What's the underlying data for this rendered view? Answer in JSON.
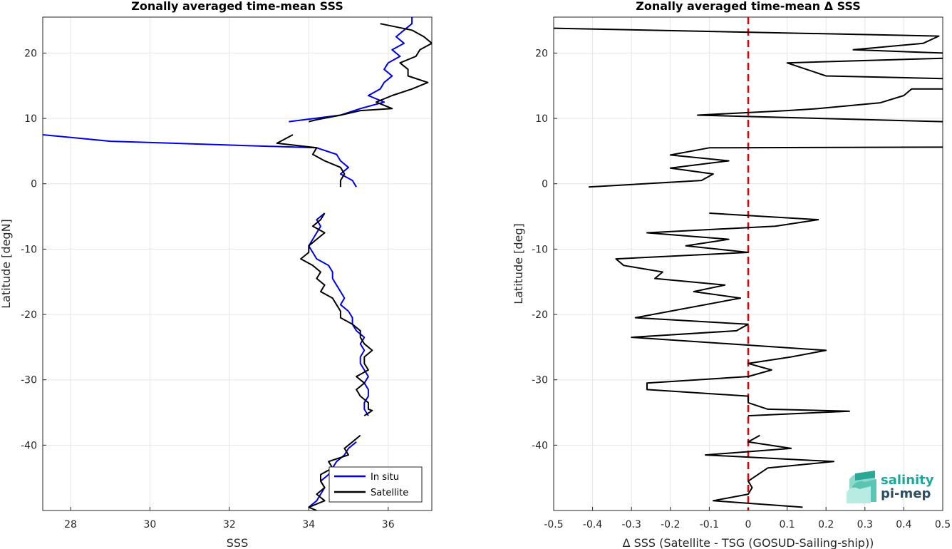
{
  "chart_data": [
    {
      "type": "line",
      "title": "Zonally averaged time-mean SSS",
      "xlabel": "SSS",
      "ylabel": "Latitude [degN]",
      "xlim": [
        27.3,
        37.1
      ],
      "ylim": [
        -50,
        25.5
      ],
      "xticks": [
        28,
        30,
        32,
        34,
        36
      ],
      "yticks": [
        20,
        10,
        0,
        -10,
        -20,
        -30,
        -40
      ],
      "grid": true,
      "legend": "bottom-right",
      "series": [
        {
          "name": "In situ",
          "color": "#0000e6",
          "segments": [
            [
              [
                36.6,
                25.5
              ],
              [
                36.6,
                24.5
              ],
              [
                36.4,
                23.5
              ],
              [
                36.2,
                22.5
              ],
              [
                36.4,
                21.5
              ],
              [
                36.1,
                20.5
              ],
              [
                36.3,
                19.5
              ],
              [
                36.0,
                18.5
              ],
              [
                35.9,
                17.5
              ],
              [
                36.1,
                16.5
              ],
              [
                35.9,
                15.5
              ],
              [
                35.8,
                14.5
              ],
              [
                35.5,
                13.5
              ],
              [
                35.9,
                12.5
              ],
              [
                35.3,
                11.5
              ],
              [
                34.8,
                10.5
              ],
              [
                33.5,
                9.5
              ]
            ],
            [
              [
                27.3,
                7.5
              ],
              [
                29.0,
                6.5
              ],
              [
                34.2,
                5.5
              ],
              [
                34.7,
                4.5
              ],
              [
                34.8,
                3.5
              ],
              [
                35.0,
                2.5
              ],
              [
                34.8,
                1.5
              ],
              [
                35.1,
                0.5
              ],
              [
                35.2,
                -0.5
              ]
            ],
            [
              [
                34.4,
                -4.5
              ],
              [
                34.2,
                -5.5
              ],
              [
                34.3,
                -6.5
              ],
              [
                34.2,
                -7.5
              ],
              [
                34.1,
                -8.5
              ],
              [
                34.0,
                -9.5
              ],
              [
                34.1,
                -10.5
              ],
              [
                34.2,
                -11.5
              ],
              [
                34.5,
                -12.5
              ],
              [
                34.6,
                -13.5
              ],
              [
                34.6,
                -14.5
              ],
              [
                34.7,
                -15.5
              ],
              [
                34.8,
                -16.5
              ],
              [
                34.9,
                -17.5
              ],
              [
                34.8,
                -18.5
              ],
              [
                35.0,
                -19.5
              ],
              [
                35.1,
                -20.5
              ],
              [
                35.1,
                -21.5
              ],
              [
                35.2,
                -22.5
              ],
              [
                35.4,
                -23.5
              ],
              [
                35.3,
                -24.5
              ],
              [
                35.4,
                -25.5
              ],
              [
                35.3,
                -26.5
              ],
              [
                35.3,
                -27.5
              ],
              [
                35.4,
                -28.5
              ],
              [
                35.5,
                -29.5
              ],
              [
                35.4,
                -30.5
              ],
              [
                35.5,
                -31.5
              ],
              [
                35.5,
                -32.5
              ],
              [
                35.4,
                -33.5
              ],
              [
                35.4,
                -34.5
              ],
              [
                35.5,
                -35.5
              ]
            ],
            [
              [
                35.2,
                -39.5
              ],
              [
                35.0,
                -40.5
              ],
              [
                34.9,
                -41.5
              ],
              [
                34.7,
                -42.5
              ],
              [
                34.6,
                -43.5
              ],
              [
                34.5,
                -44.5
              ],
              [
                34.3,
                -45.5
              ],
              [
                34.4,
                -46.5
              ],
              [
                34.3,
                -47.5
              ],
              [
                34.2,
                -48.5
              ],
              [
                34.0,
                -49.5
              ]
            ]
          ]
        },
        {
          "name": "Satellite",
          "color": "#000000",
          "segments": [
            [
              [
                35.8,
                24.5
              ],
              [
                36.6,
                23.5
              ],
              [
                36.9,
                22.5
              ],
              [
                37.1,
                21.5
              ],
              [
                36.8,
                20.5
              ],
              [
                36.7,
                19.5
              ],
              [
                36.3,
                18.5
              ],
              [
                36.5,
                17.5
              ],
              [
                36.5,
                16.5
              ],
              [
                37.0,
                15.5
              ],
              [
                36.6,
                14.5
              ],
              [
                36.1,
                13.5
              ],
              [
                35.7,
                12.5
              ],
              [
                36.1,
                11.5
              ],
              [
                35.3,
                11.2
              ],
              [
                34.8,
                10.5
              ],
              [
                34.2,
                9.8
              ],
              [
                34.0,
                9.5
              ]
            ],
            [
              [
                33.6,
                7.5
              ],
              [
                33.2,
                6.2
              ],
              [
                34.2,
                5.5
              ],
              [
                34.1,
                4.5
              ],
              [
                34.4,
                3.5
              ],
              [
                34.6,
                3.0
              ],
              [
                34.8,
                2.5
              ],
              [
                34.9,
                1.5
              ],
              [
                34.8,
                0.5
              ],
              [
                34.8,
                -0.5
              ]
            ],
            [
              [
                34.4,
                -4.5
              ],
              [
                34.3,
                -5.5
              ],
              [
                34.1,
                -6.5
              ],
              [
                34.4,
                -7.5
              ],
              [
                34.2,
                -8.5
              ],
              [
                34.0,
                -9.5
              ],
              [
                34.0,
                -10.5
              ],
              [
                33.8,
                -11.5
              ],
              [
                34.1,
                -12.5
              ],
              [
                34.3,
                -13.5
              ],
              [
                34.2,
                -14.5
              ],
              [
                34.4,
                -15.5
              ],
              [
                34.3,
                -16.5
              ],
              [
                34.6,
                -17.5
              ],
              [
                34.7,
                -18.5
              ],
              [
                34.8,
                -19.5
              ],
              [
                34.8,
                -20.5
              ],
              [
                35.1,
                -21.5
              ],
              [
                35.3,
                -22.5
              ],
              [
                35.3,
                -23.5
              ],
              [
                35.4,
                -24.5
              ],
              [
                35.6,
                -25.5
              ],
              [
                35.4,
                -26.5
              ],
              [
                35.4,
                -27.5
              ],
              [
                35.5,
                -28.5
              ],
              [
                35.2,
                -29.5
              ],
              [
                35.4,
                -30.5
              ],
              [
                35.2,
                -31.5
              ],
              [
                35.3,
                -32.5
              ],
              [
                35.5,
                -33.5
              ],
              [
                35.5,
                -34.5
              ],
              [
                35.6,
                -34.7
              ],
              [
                35.4,
                -35.5
              ]
            ],
            [
              [
                35.3,
                -38.5
              ],
              [
                35.1,
                -39.5
              ],
              [
                34.9,
                -40.5
              ],
              [
                35.0,
                -41.5
              ],
              [
                34.5,
                -42.5
              ],
              [
                34.6,
                -43.5
              ],
              [
                34.3,
                -44.5
              ],
              [
                34.3,
                -45.5
              ],
              [
                34.4,
                -46.5
              ],
              [
                34.2,
                -47.5
              ],
              [
                34.4,
                -48.5
              ],
              [
                34.0,
                -49.5
              ],
              [
                34.2,
                -50
              ]
            ]
          ]
        }
      ]
    },
    {
      "type": "line",
      "title": "Zonally averaged time-mean Δ SSS",
      "xlabel": "Δ SSS (Satellite - TSG (GOSUD-Sailing-ship))",
      "ylabel": "Latitude [deg]",
      "xlim": [
        -0.5,
        0.5
      ],
      "ylim": [
        -50,
        25.5
      ],
      "xticks": [
        -0.5,
        -0.4,
        -0.3,
        -0.2,
        -0.1,
        0,
        0.1,
        0.2,
        0.3,
        0.4,
        0.5
      ],
      "xticklabels": [
        "-0.5",
        "-0.4",
        "-0.3",
        "-0.2",
        "-0.1",
        "0",
        "0.1",
        "0.2",
        "0.3",
        "0.4",
        "0.5"
      ],
      "yticks": [
        20,
        10,
        0,
        -10,
        -20,
        -30,
        -40
      ],
      "grid": true,
      "reference_line": {
        "x": 0,
        "color": "#e60000",
        "style": "dashed"
      },
      "series": [
        {
          "color": "#000000",
          "segments": [
            [
              [
                -0.5,
                23.8
              ],
              [
                0.49,
                22.6
              ],
              [
                0.45,
                21.5
              ],
              [
                0.27,
                20.5
              ],
              [
                0.5,
                20.0
              ]
            ],
            [
              [
                0.5,
                19.2
              ],
              [
                0.1,
                18.5
              ],
              [
                0.15,
                17.5
              ],
              [
                0.2,
                16.5
              ],
              [
                0.5,
                16.1
              ]
            ],
            [
              [
                0.5,
                14.5
              ],
              [
                0.42,
                14.5
              ],
              [
                0.4,
                13.5
              ],
              [
                0.34,
                12.4
              ],
              [
                0.18,
                11.5
              ],
              [
                0.1,
                11.2
              ],
              [
                -0.13,
                10.5
              ],
              [
                0.5,
                9.5
              ]
            ],
            [
              [
                0.5,
                5.6
              ],
              [
                -0.1,
                5.5
              ],
              [
                -0.2,
                4.4
              ],
              [
                -0.05,
                3.5
              ],
              [
                -0.2,
                2.4
              ],
              [
                -0.09,
                1.5
              ],
              [
                -0.12,
                0.5
              ],
              [
                -0.41,
                -0.5
              ]
            ],
            [
              [
                -0.1,
                -4.5
              ],
              [
                0.18,
                -5.5
              ],
              [
                0.07,
                -6.5
              ],
              [
                -0.26,
                -7.5
              ],
              [
                -0.05,
                -8.5
              ],
              [
                -0.16,
                -9.5
              ],
              [
                0.0,
                -10.5
              ],
              [
                -0.34,
                -11.5
              ],
              [
                -0.32,
                -12.5
              ],
              [
                -0.22,
                -13.5
              ],
              [
                -0.24,
                -14.5
              ],
              [
                -0.06,
                -15.5
              ],
              [
                -0.14,
                -16.5
              ],
              [
                -0.02,
                -17.5
              ],
              [
                -0.29,
                -20.5
              ],
              [
                0.0,
                -21.5
              ],
              [
                -0.03,
                -22.5
              ],
              [
                -0.3,
                -23.5
              ],
              [
                0.2,
                -25.5
              ],
              [
                0.11,
                -26.5
              ],
              [
                0.0,
                -27.5
              ],
              [
                0.06,
                -28.5
              ],
              [
                0.0,
                -29.5
              ],
              [
                -0.26,
                -30.5
              ],
              [
                -0.26,
                -31.5
              ],
              [
                0.0,
                -32.5
              ],
              [
                0.0,
                -33.5
              ],
              [
                0.05,
                -34.5
              ],
              [
                0.26,
                -34.8
              ],
              [
                0.0,
                -35.5
              ]
            ],
            [
              [
                0.03,
                -38.5
              ],
              [
                0.0,
                -39.5
              ],
              [
                0.11,
                -40.5
              ],
              [
                -0.11,
                -41.5
              ],
              [
                0.22,
                -42.5
              ],
              [
                0.05,
                -43.5
              ],
              [
                0.0,
                -45.5
              ],
              [
                0.01,
                -46.5
              ],
              [
                0.0,
                -47.5
              ],
              [
                -0.09,
                -48.5
              ],
              [
                0.14,
                -49.5
              ]
            ]
          ]
        }
      ]
    }
  ],
  "legend": {
    "items": [
      {
        "label": "In situ",
        "color": "#0000e6"
      },
      {
        "label": "Satellite",
        "color": "#000000"
      }
    ]
  },
  "logo": {
    "line1": "salinity",
    "line2": "pi-mep",
    "color1": "#1aa89a",
    "color2": "#2e4f63"
  }
}
